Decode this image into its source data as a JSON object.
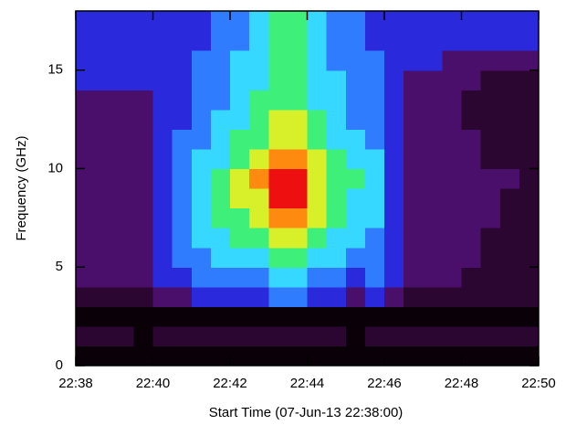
{
  "chart_data": {
    "type": "heatmap",
    "xlabel": "Start Time (07-Jun-13 22:38:00)",
    "ylabel": "Frequency (GHz)",
    "xlim": [
      0,
      12
    ],
    "xticks": [
      {
        "value": 0,
        "label": "22:38"
      },
      {
        "value": 2,
        "label": "22:40"
      },
      {
        "value": 4,
        "label": "22:42"
      },
      {
        "value": 6,
        "label": "22:44"
      },
      {
        "value": 8,
        "label": "22:46"
      },
      {
        "value": 10,
        "label": "22:48"
      },
      {
        "value": 12,
        "label": "22:50"
      }
    ],
    "ylim": [
      0,
      18
    ],
    "yticks": [
      0,
      5,
      10,
      15
    ],
    "colormap": [
      "#0a0008",
      "#2a0630",
      "#4a0f6a",
      "#2a2adc",
      "#2f7cff",
      "#36d8ff",
      "#3ef07a",
      "#d8f02a",
      "#ff8a10",
      "#ee1010"
    ],
    "z": [
      [
        0,
        0,
        0,
        0,
        0,
        0,
        0,
        0,
        0,
        0,
        0,
        0,
        0,
        0,
        0,
        0,
        0,
        0,
        0,
        0,
        0,
        0,
        0,
        0
      ],
      [
        1,
        1,
        1,
        0,
        1,
        1,
        1,
        1,
        1,
        1,
        1,
        1,
        1,
        1,
        0,
        1,
        1,
        1,
        1,
        1,
        1,
        1,
        1,
        1
      ],
      [
        0,
        0,
        0,
        0,
        0,
        0,
        0,
        0,
        0,
        0,
        0,
        0,
        0,
        0,
        0,
        0,
        0,
        0,
        0,
        0,
        0,
        0,
        0,
        0
      ],
      [
        1,
        1,
        1,
        1,
        2,
        2,
        3,
        3,
        3,
        3,
        4,
        4,
        3,
        3,
        2,
        3,
        2,
        1,
        1,
        1,
        1,
        1,
        1,
        1
      ],
      [
        2,
        2,
        2,
        2,
        3,
        3,
        4,
        4,
        4,
        4,
        5,
        5,
        4,
        4,
        3,
        4,
        3,
        2,
        2,
        2,
        1,
        1,
        1,
        1
      ],
      [
        2,
        2,
        2,
        2,
        3,
        4,
        4,
        5,
        5,
        5,
        6,
        6,
        5,
        5,
        4,
        4,
        3,
        2,
        2,
        2,
        2,
        1,
        1,
        1
      ],
      [
        2,
        2,
        2,
        2,
        3,
        4,
        5,
        5,
        6,
        6,
        7,
        7,
        6,
        5,
        5,
        4,
        3,
        2,
        2,
        2,
        2,
        1,
        1,
        1
      ],
      [
        2,
        2,
        2,
        2,
        3,
        4,
        5,
        6,
        6,
        7,
        8,
        8,
        7,
        6,
        5,
        5,
        3,
        2,
        2,
        2,
        2,
        2,
        1,
        1
      ],
      [
        2,
        2,
        2,
        2,
        3,
        4,
        5,
        6,
        7,
        7,
        9,
        9,
        7,
        6,
        5,
        5,
        3,
        2,
        2,
        2,
        2,
        2,
        1,
        1
      ],
      [
        2,
        2,
        2,
        2,
        3,
        4,
        5,
        6,
        7,
        8,
        9,
        9,
        7,
        6,
        6,
        5,
        3,
        2,
        2,
        2,
        2,
        2,
        2,
        1
      ],
      [
        2,
        2,
        2,
        2,
        3,
        4,
        5,
        5,
        6,
        7,
        8,
        8,
        7,
        6,
        5,
        5,
        3,
        2,
        2,
        2,
        2,
        1,
        1,
        1
      ],
      [
        2,
        2,
        2,
        2,
        3,
        4,
        4,
        5,
        6,
        6,
        7,
        7,
        6,
        5,
        5,
        4,
        3,
        2,
        2,
        2,
        2,
        1,
        1,
        1
      ],
      [
        2,
        2,
        2,
        2,
        3,
        3,
        4,
        5,
        5,
        6,
        7,
        7,
        6,
        5,
        4,
        4,
        3,
        2,
        2,
        2,
        1,
        1,
        1,
        1
      ],
      [
        2,
        2,
        2,
        2,
        3,
        3,
        4,
        4,
        5,
        6,
        6,
        6,
        5,
        5,
        4,
        4,
        3,
        2,
        2,
        2,
        1,
        1,
        1,
        1
      ],
      [
        3,
        3,
        3,
        3,
        3,
        3,
        4,
        4,
        5,
        5,
        6,
        6,
        5,
        5,
        4,
        4,
        3,
        2,
        2,
        2,
        2,
        1,
        1,
        1
      ],
      [
        3,
        3,
        3,
        3,
        3,
        3,
        4,
        4,
        5,
        5,
        6,
        6,
        5,
        4,
        4,
        4,
        3,
        3,
        3,
        2,
        2,
        2,
        2,
        2
      ],
      [
        3,
        3,
        3,
        3,
        3,
        3,
        3,
        4,
        4,
        5,
        6,
        6,
        5,
        4,
        4,
        3,
        3,
        3,
        3,
        3,
        3,
        3,
        3,
        3
      ],
      [
        3,
        3,
        3,
        3,
        3,
        3,
        3,
        4,
        4,
        5,
        6,
        6,
        5,
        4,
        4,
        3,
        3,
        3,
        3,
        3,
        3,
        3,
        3,
        3
      ]
    ]
  }
}
